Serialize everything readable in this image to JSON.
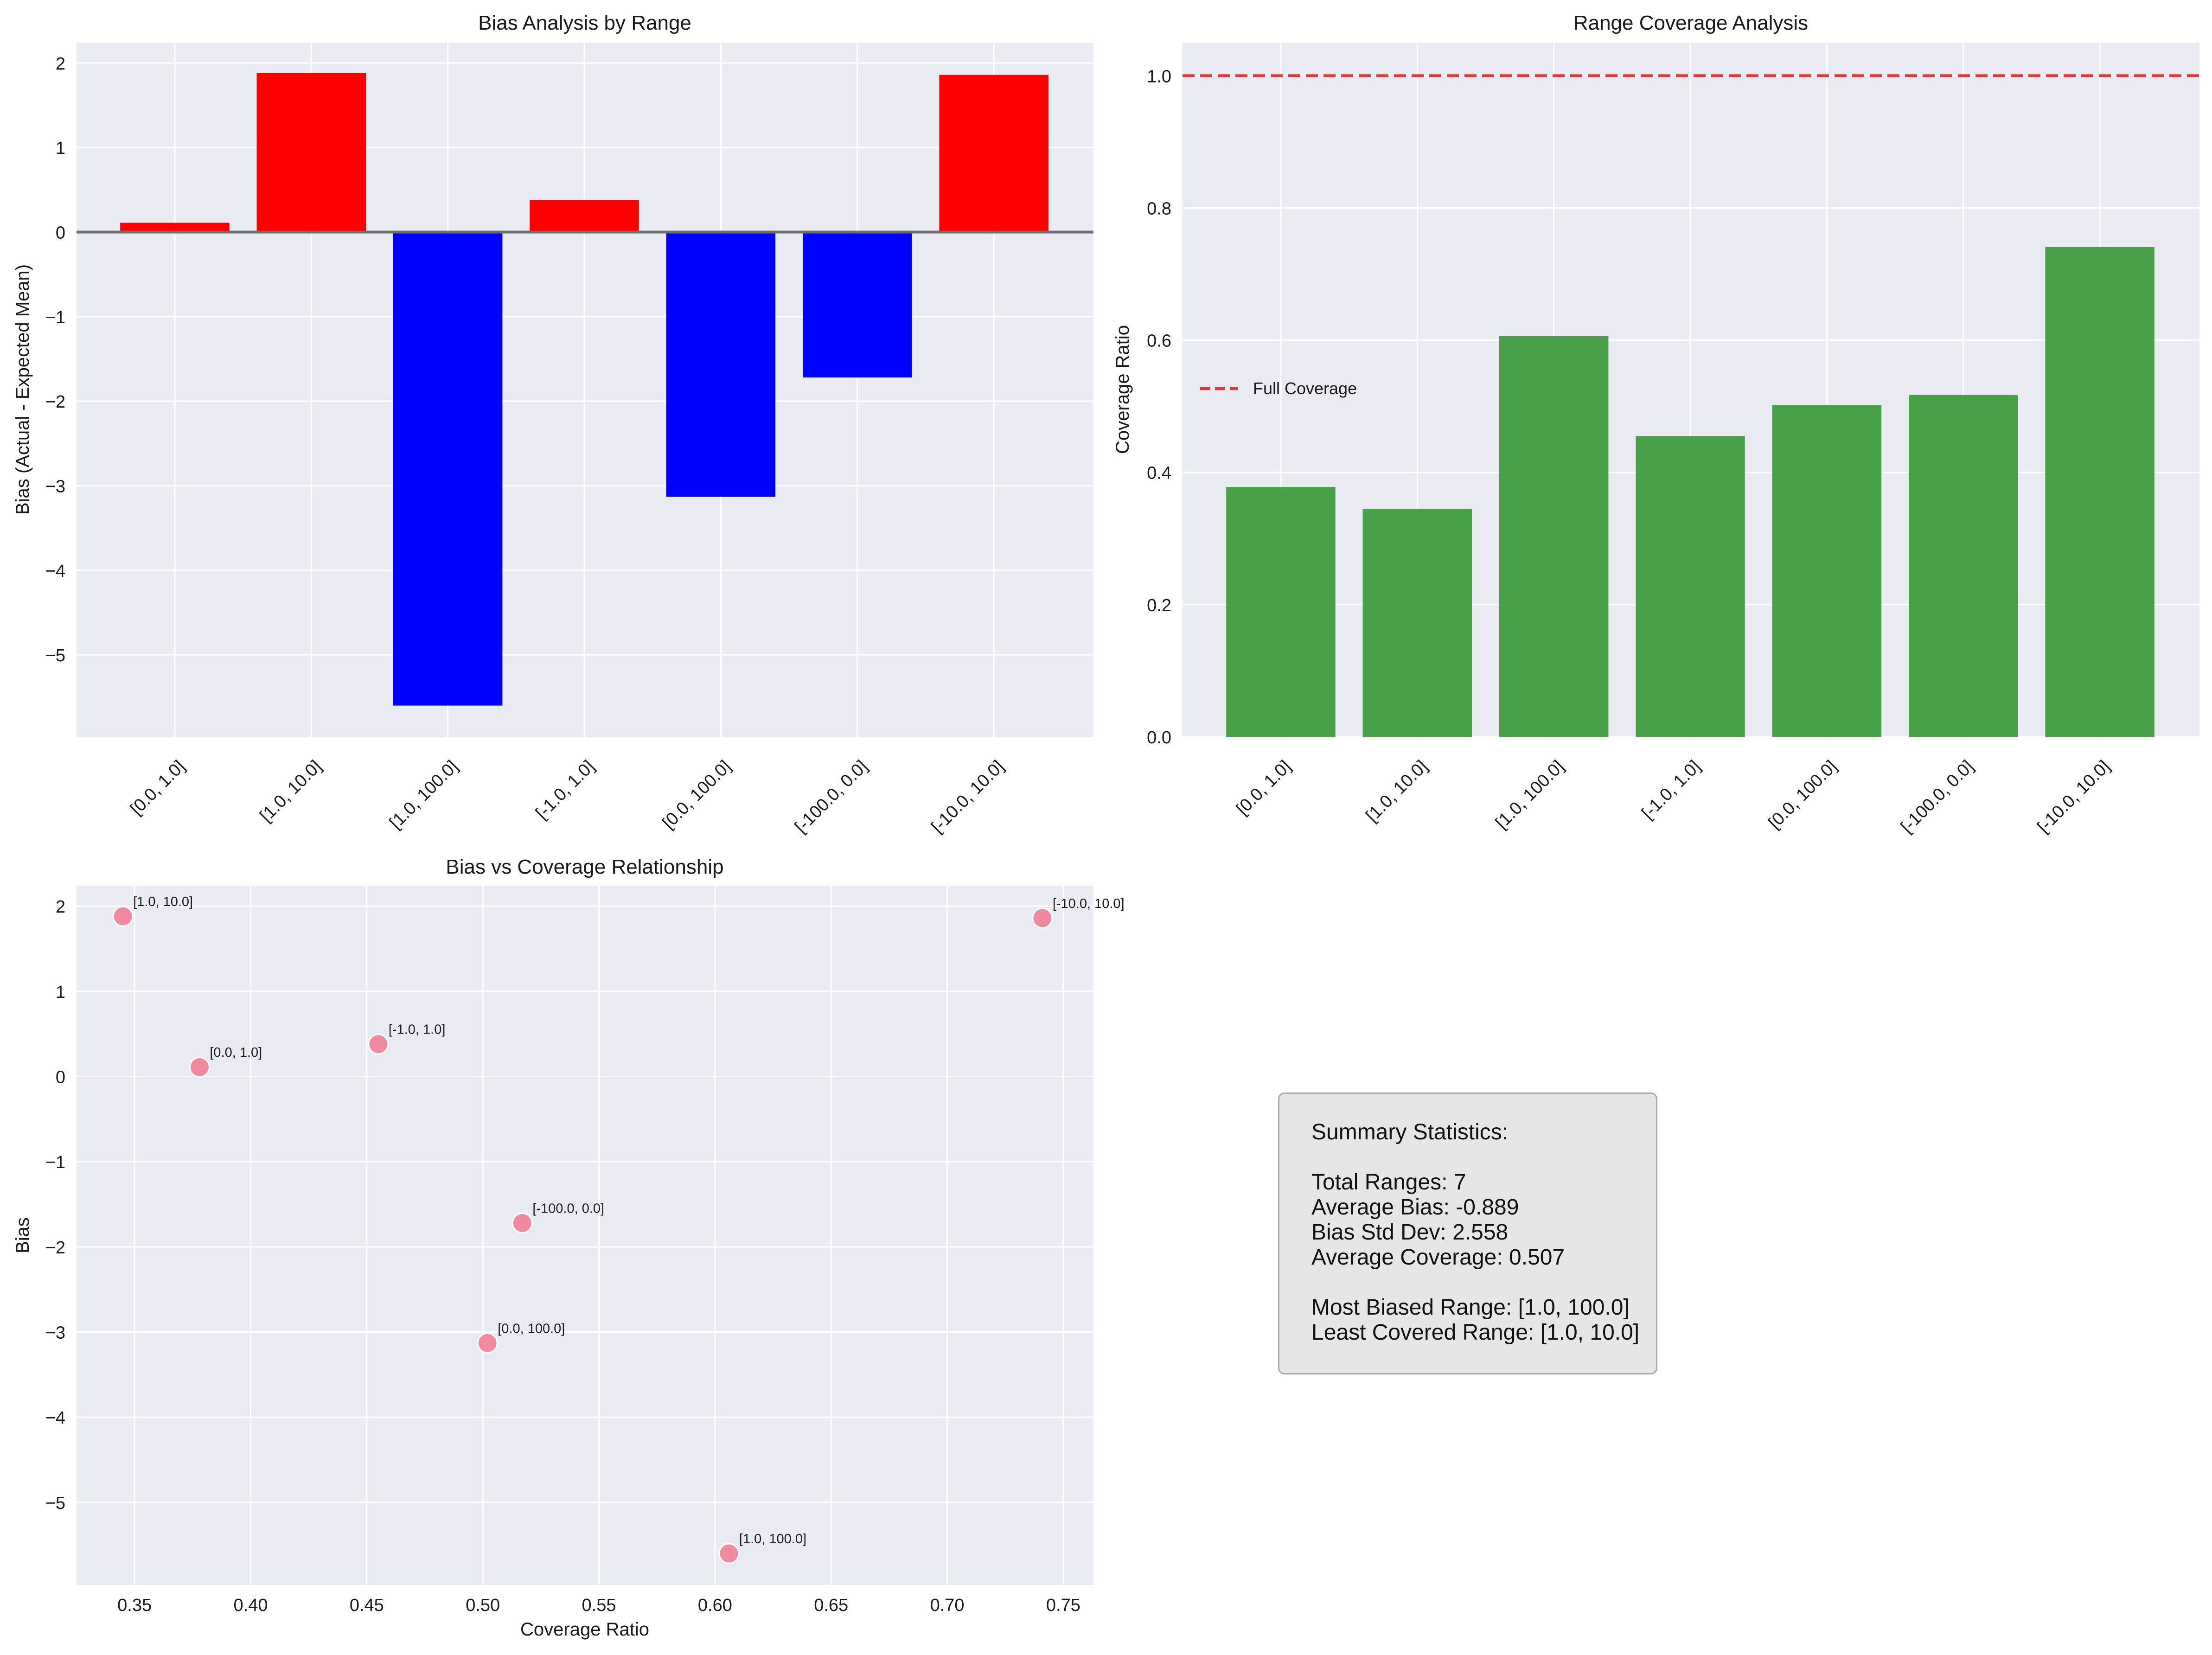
{
  "chart_data": [
    {
      "id": "bias",
      "type": "bar",
      "title": "Bias Analysis by Range",
      "xlabel": "",
      "ylabel": "Bias (Actual - Expected Mean)",
      "categories": [
        "[0.0, 1.0]",
        "[1.0, 10.0]",
        "[1.0, 100.0]",
        "[-1.0, 1.0]",
        "[0.0, 100.0]",
        "[-100.0, 0.0]",
        "[-10.0, 10.0]"
      ],
      "values": [
        0.11,
        1.88,
        -5.6,
        0.38,
        -3.13,
        -1.72,
        1.86
      ],
      "ylim": [
        -5.97,
        2.24
      ],
      "yticks": [
        2,
        1,
        0,
        -1,
        -2,
        -3,
        -4,
        -5
      ],
      "ytick_labels": [
        "2",
        "1",
        "0",
        "−1",
        "−2",
        "−3",
        "−4",
        "−5"
      ],
      "positive_color": "#ff0000",
      "negative_color": "#0000ff",
      "zero_line_color": "#6e6e6e",
      "grid": true
    },
    {
      "id": "coverage",
      "type": "bar",
      "title": "Range Coverage Analysis",
      "xlabel": "",
      "ylabel": "Coverage Ratio",
      "categories": [
        "[0.0, 1.0]",
        "[1.0, 10.0]",
        "[1.0, 100.0]",
        "[-1.0, 1.0]",
        "[0.0, 100.0]",
        "[-100.0, 0.0]",
        "[-10.0, 10.0]"
      ],
      "values": [
        0.378,
        0.345,
        0.606,
        0.455,
        0.502,
        0.517,
        0.741
      ],
      "ylim": [
        0,
        1.05
      ],
      "yticks": [
        0,
        0.2,
        0.4,
        0.6,
        0.8,
        1.0
      ],
      "ytick_labels": [
        "0.0",
        "0.2",
        "0.4",
        "0.6",
        "0.8",
        "1.0"
      ],
      "bar_color": "#3a9a3a",
      "reference_line": {
        "value": 1.0,
        "label": "Full Coverage",
        "color": "#ee3333"
      },
      "legend_position": "center-left",
      "grid": true
    },
    {
      "id": "scatter",
      "type": "scatter",
      "title": "Bias vs Coverage Relationship",
      "xlabel": "Coverage Ratio",
      "ylabel": "Bias",
      "points": [
        {
          "label": "[0.0, 1.0]",
          "x": 0.378,
          "y": 0.11
        },
        {
          "label": "[1.0, 10.0]",
          "x": 0.345,
          "y": 1.88
        },
        {
          "label": "[1.0, 100.0]",
          "x": 0.606,
          "y": -5.6
        },
        {
          "label": "[-1.0, 1.0]",
          "x": 0.455,
          "y": 0.38
        },
        {
          "label": "[0.0, 100.0]",
          "x": 0.502,
          "y": -3.13
        },
        {
          "label": "[-100.0, 0.0]",
          "x": 0.517,
          "y": -1.72
        },
        {
          "label": "[-10.0, 10.0]",
          "x": 0.741,
          "y": 1.86
        }
      ],
      "xlim": [
        0.325,
        0.763
      ],
      "ylim": [
        -5.97,
        2.24
      ],
      "xticks": [
        0.35,
        0.4,
        0.45,
        0.5,
        0.55,
        0.6,
        0.65,
        0.7,
        0.75
      ],
      "xtick_labels": [
        "0.35",
        "0.40",
        "0.45",
        "0.50",
        "0.55",
        "0.60",
        "0.65",
        "0.70",
        "0.75"
      ],
      "yticks": [
        2,
        1,
        0,
        -1,
        -2,
        -3,
        -4,
        -5
      ],
      "ytick_labels": [
        "2",
        "1",
        "0",
        "−1",
        "−2",
        "−3",
        "−4",
        "−5"
      ],
      "point_color": "#f08aa0",
      "grid": true
    }
  ],
  "summary": {
    "heading": "Summary Statistics:",
    "total_ranges": "Total Ranges: 7",
    "average_bias": "Average Bias: -0.889",
    "bias_std_dev": "Bias Std Dev: 2.558",
    "average_coverage": "Average Coverage: 0.507",
    "most_biased": "Most Biased Range: [1.0, 100.0]",
    "least_covered": "Least Covered Range: [1.0, 10.0]"
  }
}
